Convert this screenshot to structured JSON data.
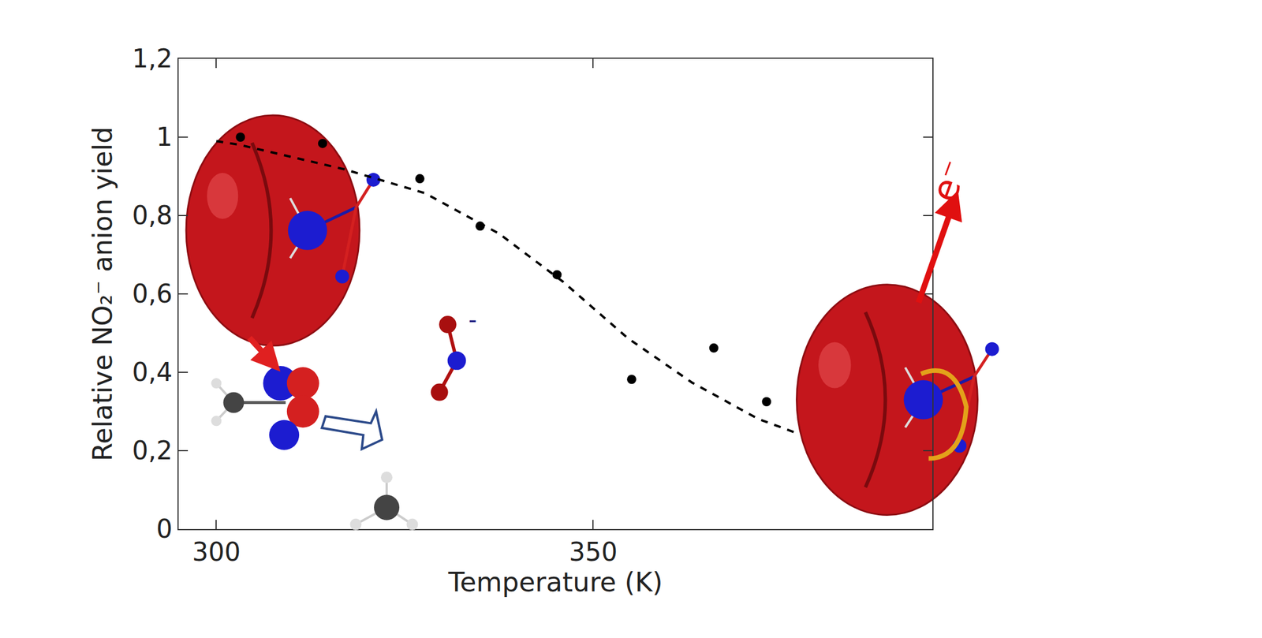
{
  "chart_data": {
    "type": "scatter",
    "x_label": "Temperature (K)",
    "y_label": "Relative NO₂⁻ anion yield",
    "xlim": [
      295,
      395
    ],
    "xticks": [
      300,
      350
    ],
    "ylim": [
      0,
      1.2
    ],
    "yticks": [
      0,
      {
        "value": 0.2,
        "label": "0,2"
      },
      {
        "value": 0.4,
        "label": "0,4"
      },
      {
        "value": 0.6,
        "label": "0,6"
      },
      {
        "value": 0.8,
        "label": "0,8"
      },
      1,
      {
        "value": 1.2,
        "label": "1,2"
      }
    ],
    "grid": false,
    "series": [
      {
        "type": "scatter",
        "marker": "circle",
        "color": "#000000",
        "x": [
          303.2,
          314.1,
          327.0,
          335.0,
          345.2,
          355.1,
          366.0,
          373.0
        ],
        "values": [
          1.0,
          0.984,
          0.894,
          0.773,
          0.649,
          0.382,
          0.462,
          0.325
        ]
      },
      {
        "type": "line",
        "line_style": "dash",
        "color": "#000000",
        "x": [
          300.0,
          303.2,
          317.0,
          327.7,
          337.5,
          346.0,
          354.6,
          363.1,
          371.9,
          376.7
        ],
        "values": [
          0.99,
          0.98,
          0.918,
          0.857,
          0.754,
          0.631,
          0.487,
          0.374,
          0.281,
          0.247
        ]
      }
    ],
    "annotations": [
      {
        "text": "e⁻"
      },
      {
        "text": "-"
      }
    ]
  }
}
